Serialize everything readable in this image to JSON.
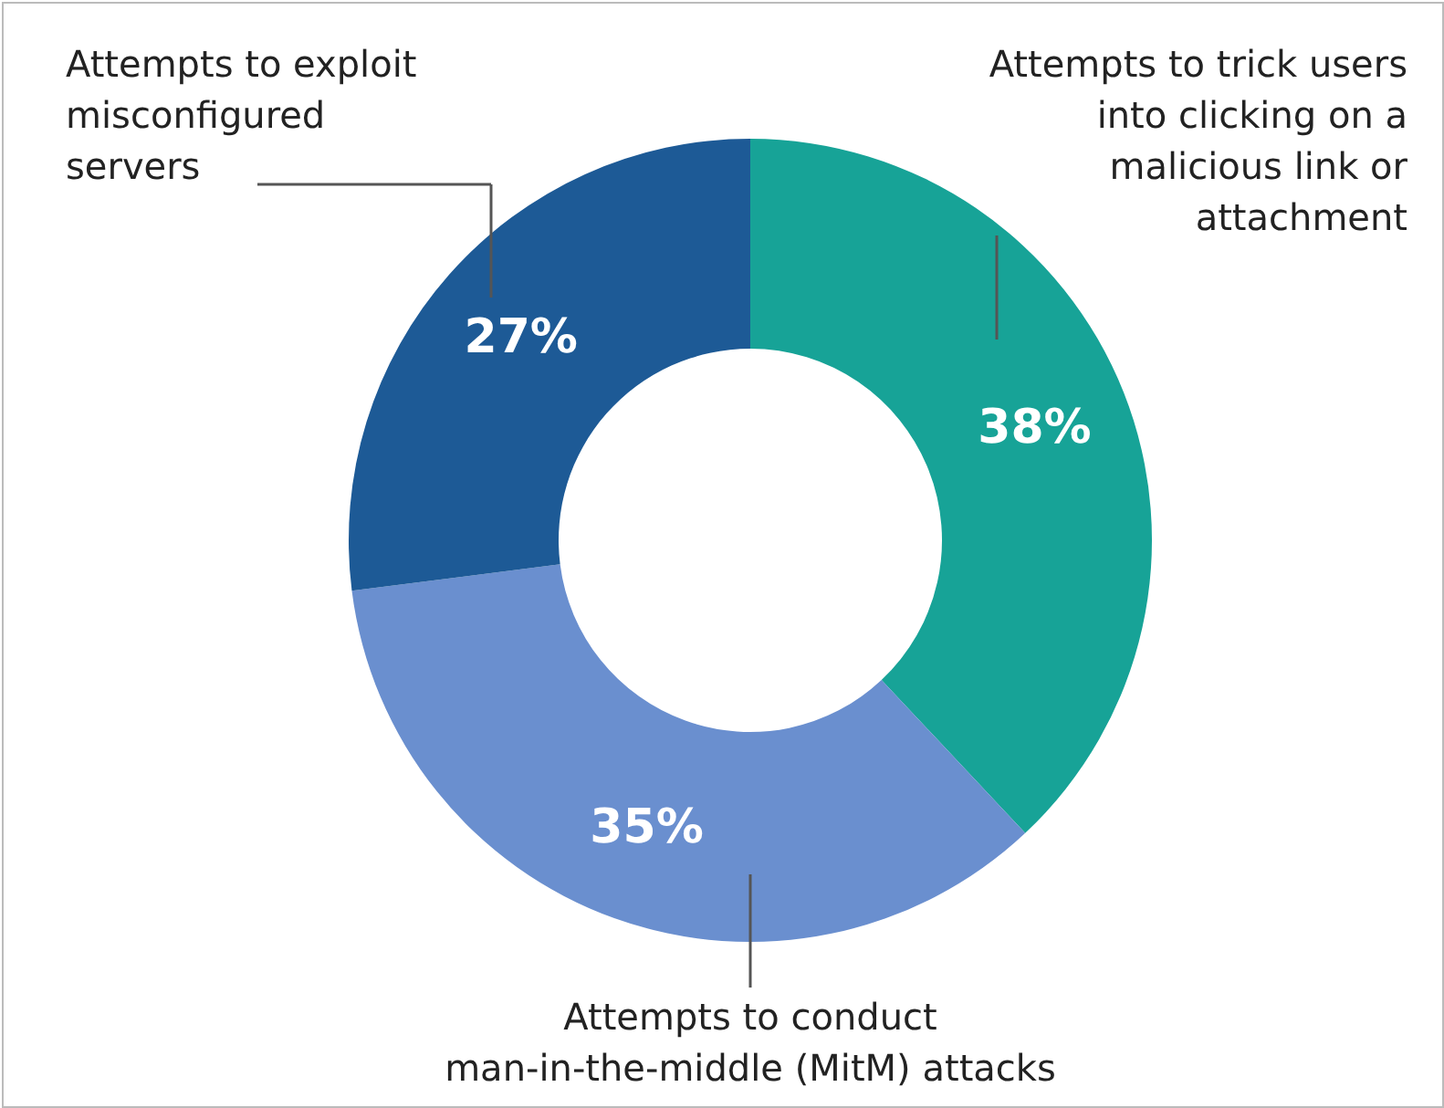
{
  "chart_data": {
    "type": "donut",
    "categories": [
      "Attempts to trick users\ninto clicking on a\nmalicious link or\nattachment",
      "Attempts to conduct\nman-in-the-middle (MitM) attacks",
      "Attempts to exploit\nmisconfigured\nservers"
    ],
    "values": [
      38,
      35,
      27
    ],
    "colors": [
      "#17a397",
      "#6a8fcf",
      "#1d5a96"
    ],
    "value_labels": [
      "38%",
      "35%",
      "27%"
    ]
  }
}
